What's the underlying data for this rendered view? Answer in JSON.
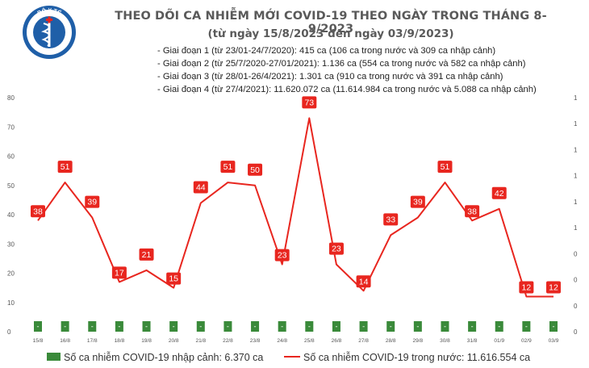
{
  "logo": {
    "arc_text": "BỘ Y TẾ",
    "bottom_text": "MINISTRY OF HEALTH"
  },
  "header": {
    "title": "THEO DÕI CA NHIỄM MỚI COVID-19 THEO NGÀY TRONG THÁNG 8-9/2023",
    "subtitle": "(từ ngày 15/8/2023 đến ngày 03/9/2023)"
  },
  "phases": [
    "- Giai đoạn 1 (từ 23/01-24/7/2020): 415 ca (106 ca trong nước và 309 ca nhập cảnh)",
    "- Giai đoạn 2 (từ 25/7/2020-27/01/2021): 1.136 ca (554 ca trong nước và 582 ca nhập cảnh)",
    "- Giai đoạn 3 (từ 28/01-26/4/2021): 1.301 ca (910 ca trong nước và 391 ca nhập cảnh)",
    "- Giai đoạn 4 (từ 27/4/2021): 11.620.072 ca (11.614.984 ca trong nước và 5.088 ca nhập cảnh)"
  ],
  "chart_data": {
    "type": "bar+line",
    "categories": [
      "15/8",
      "16/8",
      "17/8",
      "18/8",
      "19/8",
      "20/8",
      "21/8",
      "22/8",
      "23/8",
      "24/8",
      "25/8",
      "26/8",
      "27/8",
      "28/8",
      "29/8",
      "30/8",
      "31/8",
      "01/9",
      "02/9",
      "03/9"
    ],
    "series": [
      {
        "name": "Số ca nhiễm COVID-19 nhập cảnh: 6.370 ca",
        "type": "bar",
        "axis": "right",
        "color": "#3a8a3a",
        "values": [
          0,
          0,
          0,
          0,
          0,
          0,
          0,
          0,
          0,
          0,
          0,
          0,
          0,
          0,
          0,
          0,
          0,
          0,
          0,
          0
        ],
        "labels": [
          "-",
          "-",
          "-",
          "-",
          "-",
          "-",
          "-",
          "-",
          "-",
          "-",
          "-",
          "-",
          "-",
          "-",
          "-",
          "-",
          "-",
          "-",
          "-",
          "-"
        ]
      },
      {
        "name": "Số ca nhiễm COVID-19 trong nước: 11.616.554 ca",
        "type": "line",
        "axis": "left",
        "color": "#e8261f",
        "values": [
          38,
          51,
          39,
          17,
          21,
          15,
          44,
          51,
          50,
          23,
          73,
          23,
          14,
          33,
          39,
          51,
          38,
          42,
          12,
          12
        ]
      }
    ],
    "y_left": {
      "ticks": [
        "80",
        "70",
        "60",
        "50",
        "40",
        "30",
        "20",
        "10",
        "0"
      ],
      "ylim": [
        0,
        80
      ]
    },
    "y_right": {
      "ticks": [
        "1",
        "1",
        "1",
        "1",
        "1",
        "1",
        "0",
        "0",
        "0",
        "0"
      ]
    },
    "grid": false,
    "legend_position": "bottom"
  }
}
